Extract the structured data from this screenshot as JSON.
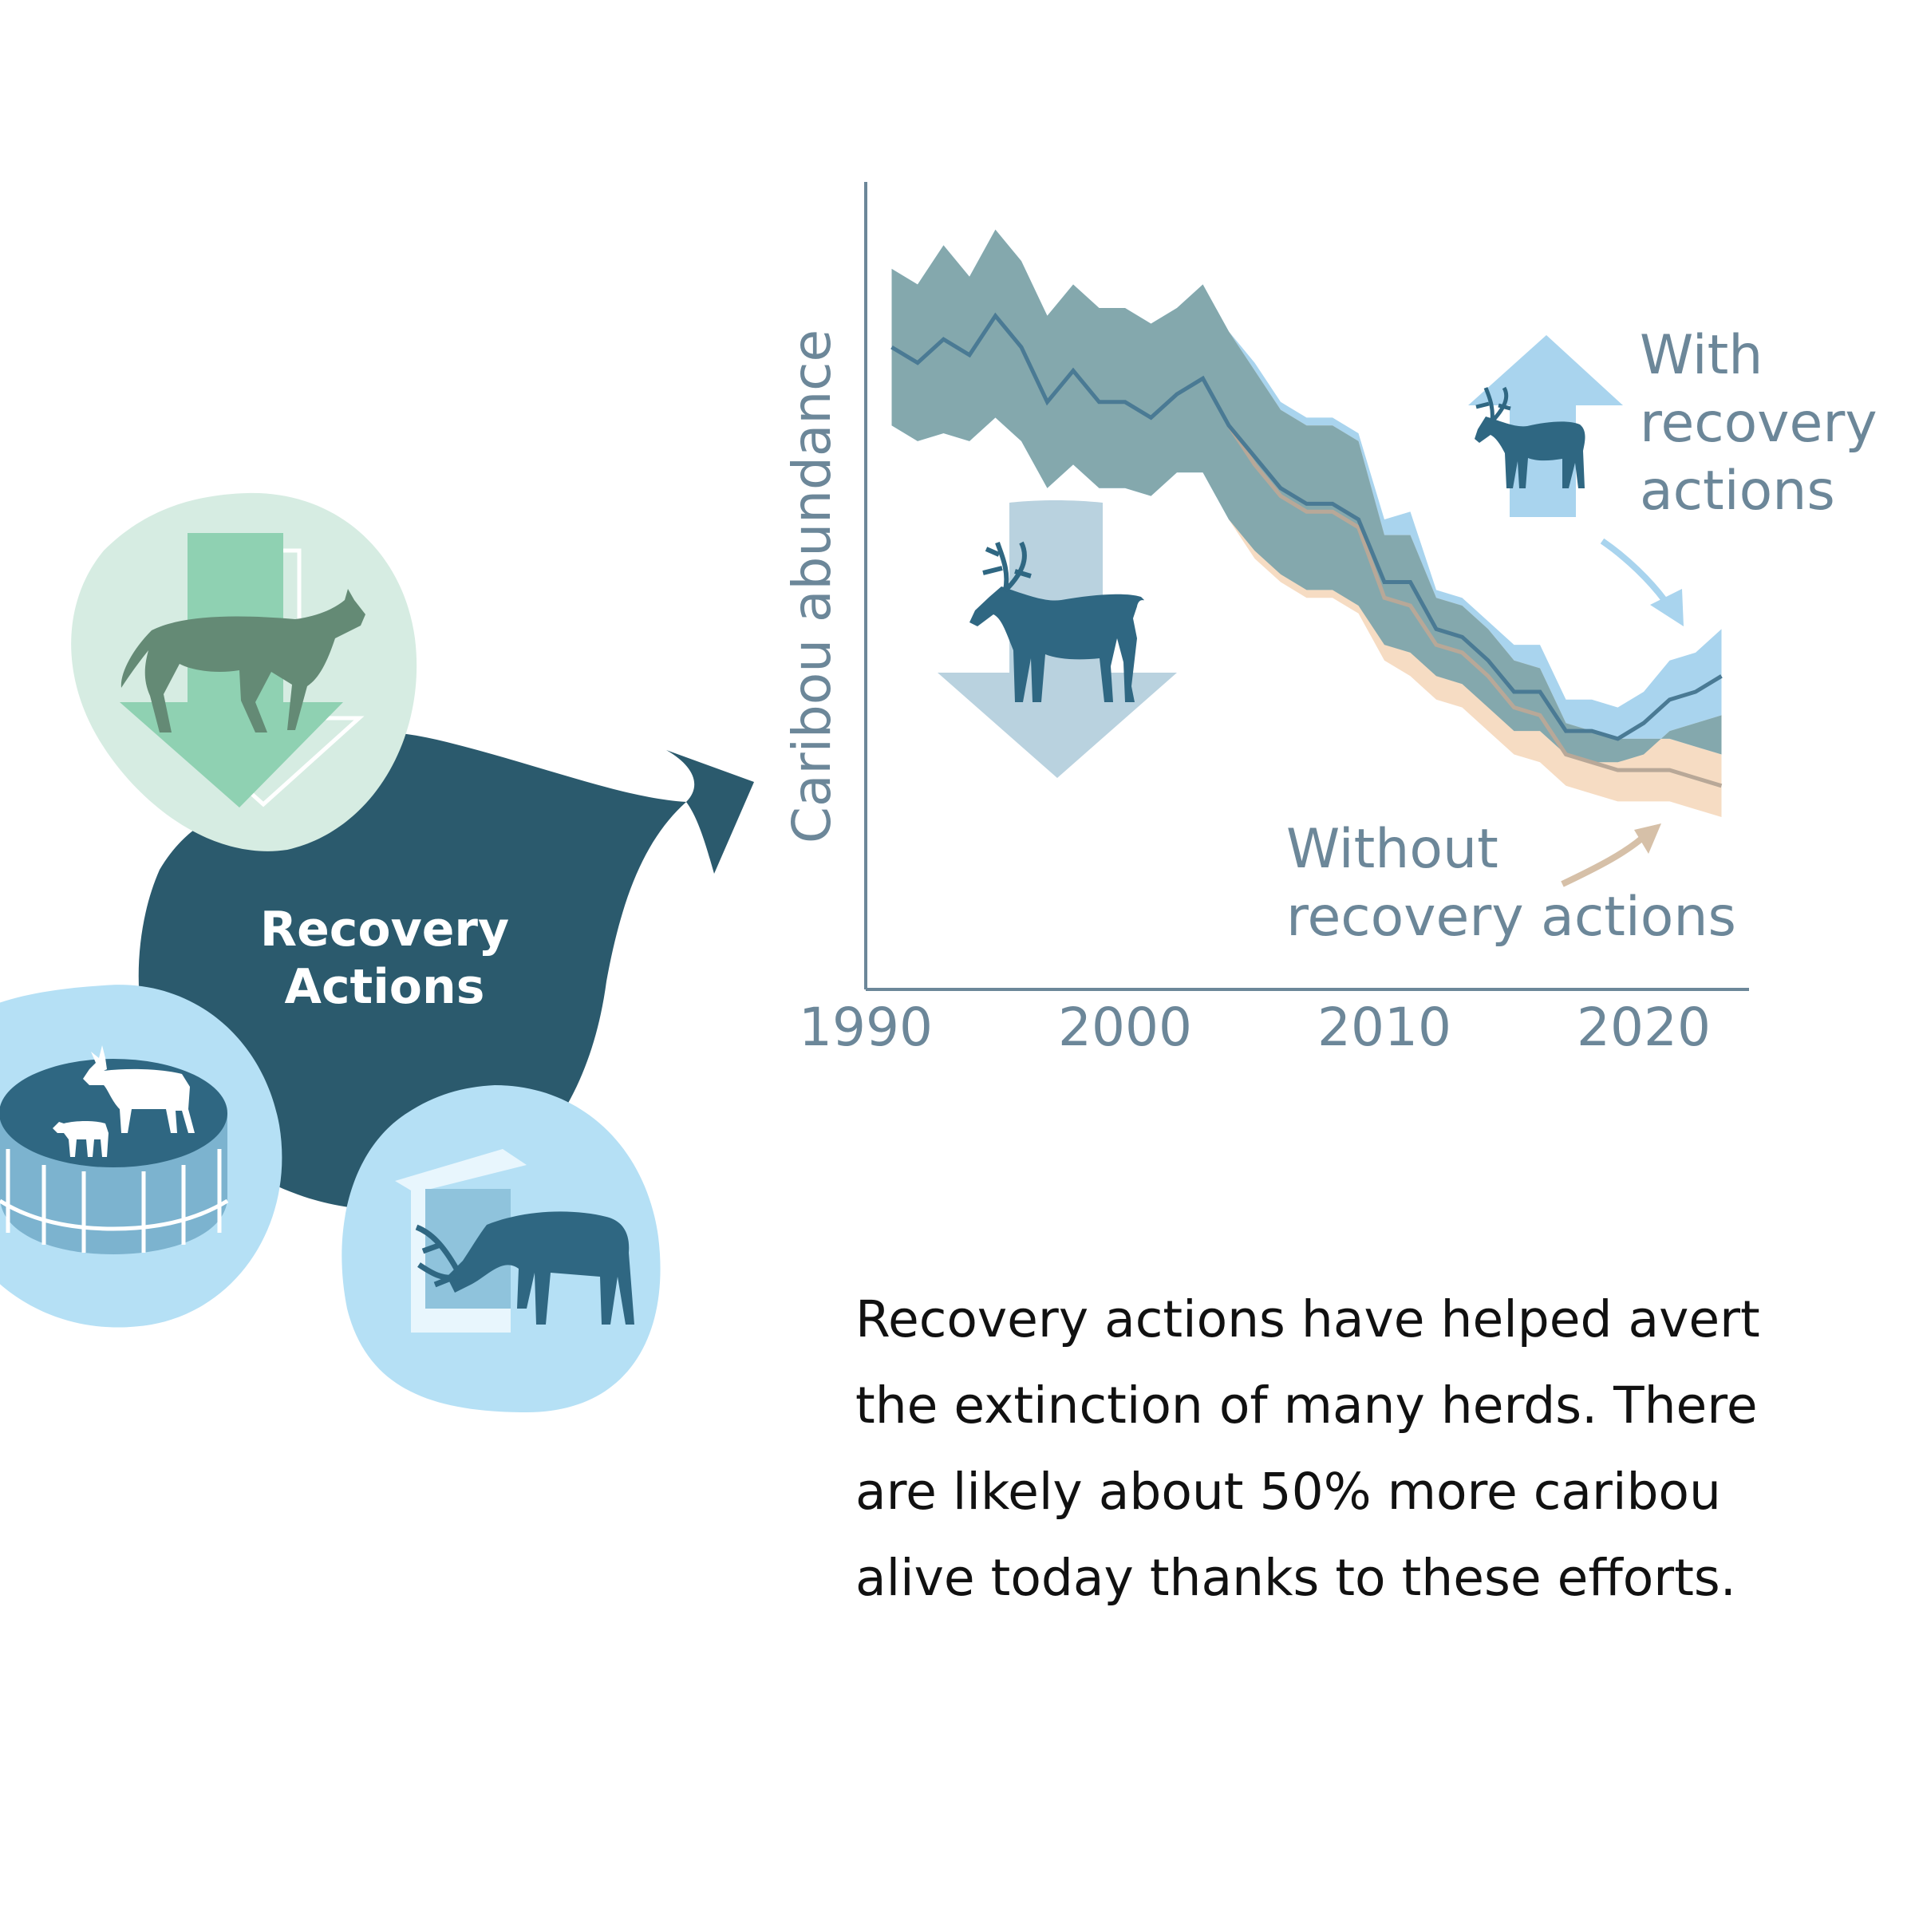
{
  "colors": {
    "axis": "#6c8799",
    "band_with": "#a9d4ee",
    "band_without": "#f6dcc3",
    "band_overlap": "#84a8ad",
    "line_with": "#4a7a94",
    "line_without": "#b8a898",
    "hub": "#2b5a6d",
    "wolf_bubble": "#d6ece2",
    "blue_bubble": "#b5e0f5",
    "caribou_dark": "#2f6782"
  },
  "icons": {
    "hub": "recovery-actions-hub",
    "top_bubble": "wolf-icon",
    "left_bubble": "maternal-pen-caribou-icon",
    "right_bubble": "feeding-station-caribou-icon",
    "decline": "caribou-down-arrow-icon",
    "increase": "caribou-up-arrow-icon"
  },
  "hub_label": [
    "Recovery",
    "Actions"
  ],
  "caption": "Recovery actions have helped avert the extinction of many herds. There are likely about 50% more caribou alive today thanks to these efforts.",
  "chart_data": {
    "type": "line",
    "title": "",
    "xlabel": "",
    "ylabel": "Caribou abundance",
    "xlim": [
      1990,
      2024
    ],
    "ylim": [
      0,
      100
    ],
    "x_ticks": [
      "1990",
      "2000",
      "2010",
      "2020"
    ],
    "grid": false,
    "series": [
      {
        "name": "With recovery actions",
        "x": [
          1991,
          1992,
          1993,
          1994,
          1995,
          1996,
          1997,
          1998,
          1999,
          2000,
          2001,
          2002,
          2003,
          2004,
          2005,
          2006,
          2007,
          2008,
          2009,
          2010,
          2011,
          2012,
          2013,
          2014,
          2015,
          2016,
          2017,
          2018,
          2019,
          2020,
          2021,
          2022,
          2023
        ],
        "values": [
          82,
          80,
          83,
          81,
          86,
          82,
          75,
          79,
          75,
          75,
          73,
          76,
          78,
          72,
          68,
          64,
          62,
          62,
          60,
          52,
          52,
          46,
          45,
          42,
          38,
          38,
          33,
          33,
          32,
          34,
          37,
          38,
          40
        ],
        "lower": [
          72,
          70,
          71,
          70,
          73,
          70,
          64,
          67,
          64,
          64,
          63,
          66,
          66,
          60,
          56,
          53,
          51,
          51,
          49,
          44,
          43,
          40,
          39,
          36,
          33,
          33,
          30,
          29,
          29,
          30,
          33,
          34,
          35
        ],
        "upper": [
          92,
          90,
          95,
          91,
          97,
          93,
          86,
          90,
          87,
          87,
          85,
          87,
          90,
          84,
          80,
          75,
          73,
          73,
          71,
          60,
          61,
          51,
          50,
          47,
          44,
          44,
          37,
          37,
          36,
          38,
          42,
          43,
          46
        ]
      },
      {
        "name": "Without recovery actions",
        "x": [
          2004,
          2005,
          2006,
          2007,
          2008,
          2009,
          2010,
          2011,
          2012,
          2013,
          2014,
          2015,
          2016,
          2017,
          2018,
          2019,
          2020,
          2021,
          2022,
          2023
        ],
        "values": [
          72,
          67,
          63,
          61,
          61,
          59,
          50,
          49,
          44,
          43,
          40,
          36,
          35,
          30,
          29,
          28,
          28,
          28,
          27,
          26
        ],
        "lower": [
          60,
          55,
          52,
          50,
          50,
          48,
          42,
          40,
          37,
          36,
          33,
          30,
          29,
          26,
          25,
          24,
          24,
          24,
          23,
          22
        ],
        "upper": [
          84,
          79,
          74,
          72,
          72,
          70,
          58,
          58,
          50,
          49,
          46,
          42,
          41,
          34,
          33,
          32,
          32,
          32,
          31,
          30
        ]
      }
    ],
    "annotations": [
      {
        "key": "with",
        "lines": [
          "With",
          "recovery",
          "actions"
        ]
      },
      {
        "key": "without",
        "lines": [
          "Without",
          "recovery actions"
        ]
      }
    ]
  }
}
